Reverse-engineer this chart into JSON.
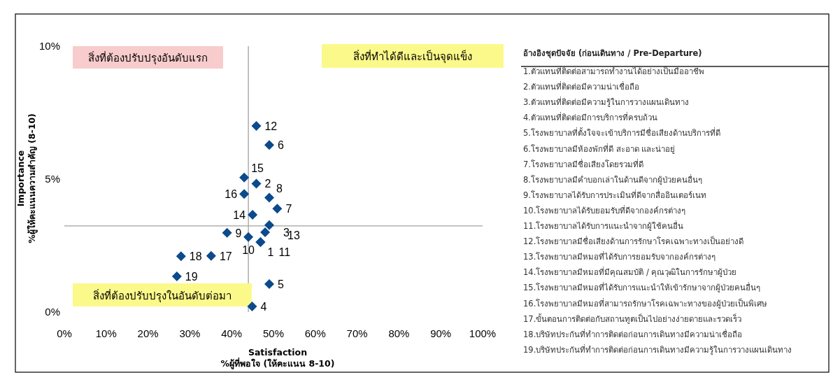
{
  "chart_data": [
    {
      "type": "scatter",
      "xlabel": "Satisfaction\n%ผู้ที่พอใจ (ให้คะแนน 8-10)",
      "ylabel": "Importance\n%ผู้ให้คะแนนความสำคัญ (8-10)",
      "x": [
        46.9,
        45.9,
        48.0,
        44.9,
        49.0,
        49.0,
        50.9,
        49.0,
        38.9,
        44.0,
        46.9,
        45.9,
        49.0,
        45.0,
        43.0,
        43.0,
        35.1,
        27.9,
        26.9
      ],
      "series": [
        {
          "color": "#0b4a8c",
          "values": [
            2.63,
            4.83,
            3.0,
            0.21,
            1.05,
            6.28,
            3.89,
            4.3,
            2.98,
            2.82,
            2.63,
            7.0,
            3.27,
            3.66,
            5.06,
            4.44,
            2.11,
            2.1,
            1.34
          ]
        }
      ],
      "marker": "diamond",
      "grid": false,
      "xlim": [
        0,
        100
      ],
      "ylim": [
        0,
        10
      ],
      "xticks": [
        {
          "value": 0,
          "label": "0%"
        },
        {
          "value": 10,
          "label": "10%"
        },
        {
          "value": 20,
          "label": "20%"
        },
        {
          "value": 30,
          "label": "30%"
        },
        {
          "value": 40,
          "label": "40%"
        },
        {
          "value": 50,
          "label": "50%"
        },
        {
          "value": 60,
          "label": "60%"
        },
        {
          "value": 70,
          "label": "70%"
        },
        {
          "value": 80,
          "label": "80%"
        },
        {
          "value": 90,
          "label": "90%"
        },
        {
          "value": 100,
          "label": "100%"
        }
      ],
      "yticks": [
        {
          "value": 0,
          "label": "0%"
        },
        {
          "value": 5,
          "label": "5%"
        },
        {
          "value": 10,
          "label": "10%"
        }
      ],
      "ref_lines": [
        {
          "axis": "x",
          "value": 44
        },
        {
          "axis": "y",
          "value": 3.24
        }
      ],
      "annotations": [
        "สิ่งที่ต้องปรับปรุงอันดับแรก",
        "สิ่งที่ทำได้ดีและเป็นจุดแข็ง",
        "สิ่งที่ต้องปรับปรุงในอันดับต่อมา",
        {
          "text": "1",
          "x": 46.9,
          "y": 2.63
        },
        {
          "text": "2",
          "x": 45.9,
          "y": 4.83
        },
        {
          "text": "3",
          "x": 48.0,
          "y": 3.0
        },
        {
          "text": "4",
          "x": 44.9,
          "y": 0.21
        },
        {
          "text": "5",
          "x": 49.0,
          "y": 1.05
        },
        {
          "text": "6",
          "x": 49.0,
          "y": 6.28
        },
        {
          "text": "7",
          "x": 50.9,
          "y": 3.89
        },
        {
          "text": "8",
          "x": 49.0,
          "y": 4.3
        },
        {
          "text": "9",
          "x": 38.9,
          "y": 2.98
        },
        {
          "text": "10",
          "x": 44.0,
          "y": 2.82
        },
        {
          "text": "11",
          "x": 46.9,
          "y": 2.63
        },
        {
          "text": "12",
          "x": 45.9,
          "y": 7.0
        },
        {
          "text": "13",
          "x": 49.0,
          "y": 3.27
        },
        {
          "text": "14",
          "x": 45.0,
          "y": 3.66
        },
        {
          "text": "15",
          "x": 43.0,
          "y": 5.06
        },
        {
          "text": "16",
          "x": 43.0,
          "y": 4.44
        },
        {
          "text": "17",
          "x": 35.1,
          "y": 2.11
        },
        {
          "text": "18",
          "x": 27.9,
          "y": 2.1
        },
        {
          "text": "19",
          "x": 26.9,
          "y": 1.34
        }
      ]
    },
    {
      "type": "other",
      "title": "อ้างอิงชุดปัจจัย (ก่อนเดินทาง / Pre-Departure)",
      "annotations": [
        "1.ตัวแทนที่ติดต่อสามารถทำงานได้อย่างเป็นมืออาชีพ",
        "2.ตัวแทนที่ติดต่อมีความน่าเชื่อถือ",
        "3.ตัวแทนที่ติดต่อมีความรู้ในการวางแผนเดินทาง",
        "4.ตัวแทนที่ติดต่อมีการบริการที่ครบถ้วน",
        "5.โรงพยาบาลที่ตั้งใจจะเข้าบริการมีชื่อเสียงด้านบริการที่ดี",
        "6.โรงพยาบาลมีห้องพักที่ดี สะอาด และน่าอยู่",
        "7.โรงพยาบาลมีชื่อเสียงโดยรวมที่ดี",
        "8.โรงพยาบาลมีคำบอกเล่าในด้านดีจากผู้ป่วยคนอื่นๆ",
        "9.โรงพยาบาลได้รับการประเมินที่ดีจากสื่ออินเตอร์เนท",
        "10.โรงพยาบาลได้รับยอมรับที่ดีจากองค์กรต่างๆ",
        "11.โรงพยาบาลได้รับการแนะนำจากผู้ใช้คนอื่น",
        "12.โรงพยาบาลมีชื่อเสียงด้านการรักษาโรคเฉพาะทางเป็นอย่างดี",
        "13.โรงพยาบาลมีหมอที่ได้รับการยอมรับจากองค์กรต่างๆ",
        "14.โรงพยาบาลมีหมอที่มีคุณสมบัติ / คุณวุฒิในการรักษาผู้ป่วย",
        "15.โรงพยาบาลมีหมอที่ได้รับการแนะนำให้เข้ารักษาจากผู้ป่วยคนอื่นๆ",
        "16.โรงพยาบาลมีหมอที่สามารถรักษาโรคเฉพาะทางของผู้ป่วยเป็นพิเศษ",
        "17.ขั้นตอนการติดต่อกับสถานทูตเป็นไปอย่างง่ายดายและรวดเร็ว",
        "18.บริษัทประกันที่ทำการติดต่อก่อนการเดินทางมีความน่าเชื่อถือ",
        "19.บริษัทประกันที่ทำการติดต่อก่อนการเดินทางมีความรู้ในการวางแผนเดินทาง"
      ]
    }
  ]
}
